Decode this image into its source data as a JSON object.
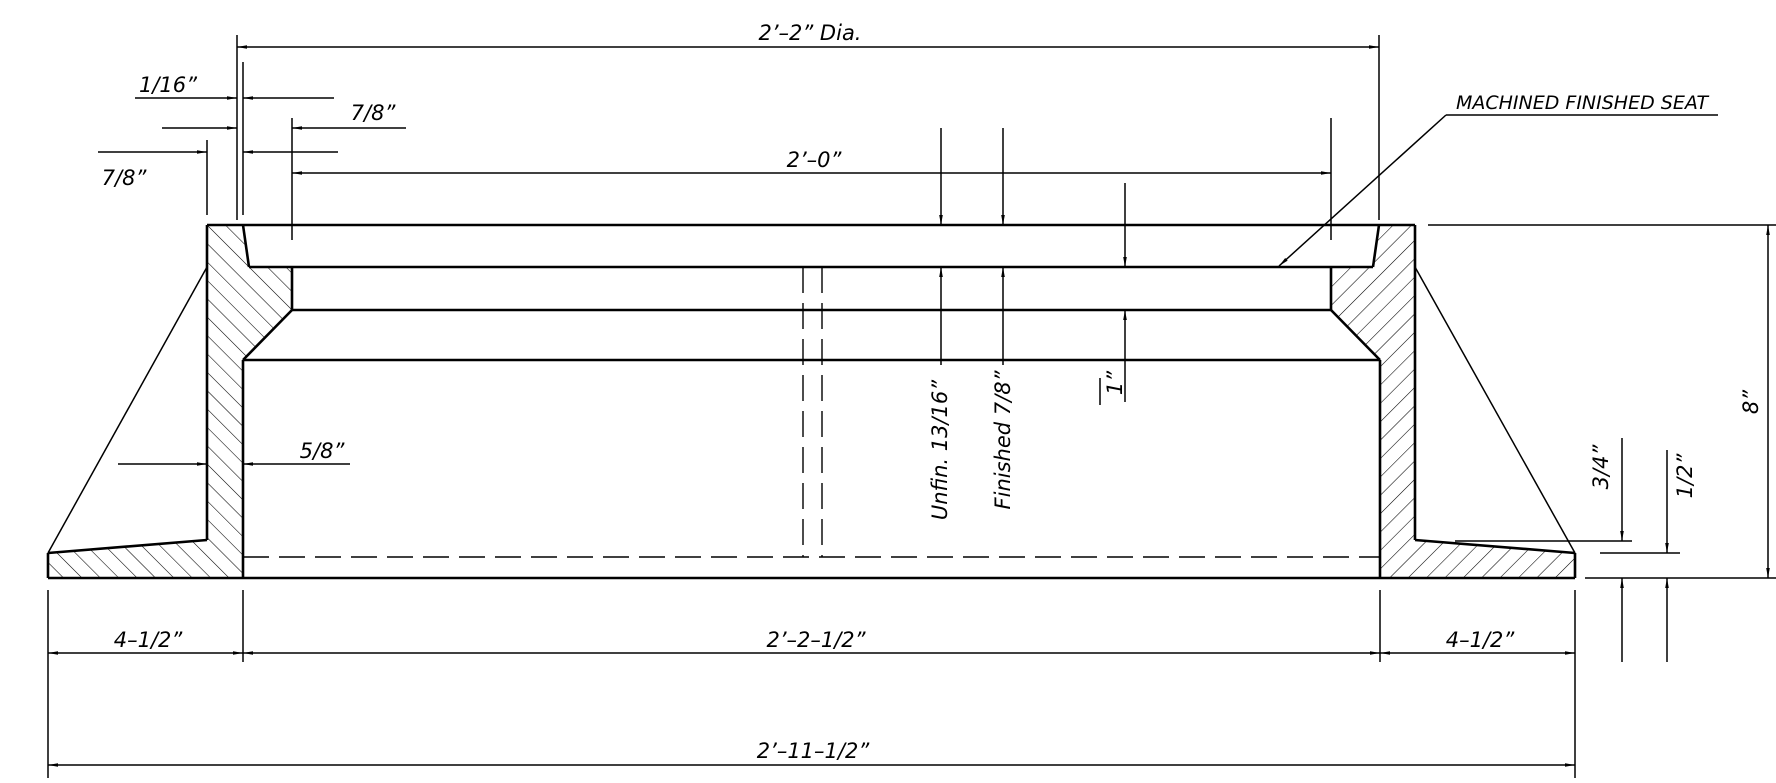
{
  "dimensions": {
    "top_diameter": "2’–2” Dia.",
    "opening": "2’–0”",
    "left_top_a": "1/16”",
    "left_top_b": "7/8”",
    "left_top_c": "7/8”",
    "wall": "5/8”",
    "unfinished_depth": "Unfin. 13/16”",
    "finished_depth": "Finished 7/8”",
    "seat_depth": "1”",
    "height": "8”",
    "flange_step_a": "3/4”",
    "flange_step_b": "1/2”",
    "left_flange": "4–1/2”",
    "inner_base": "2’–2–1/2”",
    "right_flange": "4–1/2”",
    "overall_base": "2’–11–1/2”"
  },
  "annotations": {
    "seat_note": "MACHINED FINISHED SEAT"
  },
  "colors": {
    "line": "#000000",
    "background": "#ffffff"
  }
}
